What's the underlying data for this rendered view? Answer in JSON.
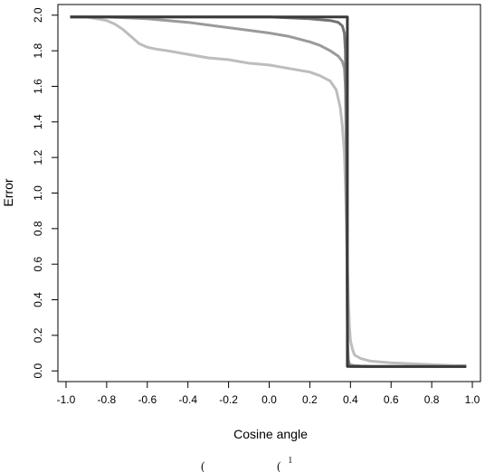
{
  "chart_data": {
    "type": "line",
    "title": "",
    "xlabel": "Cosine angle",
    "ylabel": "Error",
    "xlim": [
      -1.04,
      1.04
    ],
    "ylim": [
      -0.06,
      2.06
    ],
    "xticks": [
      -1.0,
      -0.8,
      -0.6,
      -0.4,
      -0.2,
      0.0,
      0.2,
      0.4,
      0.6,
      0.8,
      1.0
    ],
    "xtick_labels": [
      "-1.0",
      "-0.8",
      "-0.6",
      "-0.4",
      "-0.2",
      "0.0",
      "0.2",
      "0.4",
      "0.6",
      "0.8",
      "1.0"
    ],
    "yticks": [
      0.0,
      0.2,
      0.4,
      0.6,
      0.8,
      1.0,
      1.2,
      1.4,
      1.6,
      1.8,
      2.0
    ],
    "ytick_labels": [
      "0.0",
      "0.2",
      "0.4",
      "0.6",
      "0.8",
      "1.0",
      "1.2",
      "1.4",
      "1.6",
      "1.8",
      "2.0"
    ],
    "grid": false,
    "legend": "none",
    "series": [
      {
        "color": "#bdbdbd",
        "x": [
          -0.98,
          -0.9,
          -0.85,
          -0.8,
          -0.76,
          -0.72,
          -0.68,
          -0.64,
          -0.6,
          -0.56,
          -0.5,
          -0.4,
          -0.3,
          -0.2,
          -0.1,
          0.0,
          0.1,
          0.2,
          0.25,
          0.3,
          0.33,
          0.35,
          0.36,
          0.37,
          0.375,
          0.38,
          0.385,
          0.39,
          0.395,
          0.4,
          0.41,
          0.42,
          0.45,
          0.5,
          0.6,
          0.7,
          0.8,
          0.9,
          0.97
        ],
        "y": [
          1.99,
          1.99,
          1.98,
          1.97,
          1.95,
          1.92,
          1.88,
          1.84,
          1.82,
          1.81,
          1.8,
          1.78,
          1.76,
          1.75,
          1.73,
          1.72,
          1.7,
          1.68,
          1.66,
          1.63,
          1.58,
          1.48,
          1.38,
          1.22,
          1.05,
          0.85,
          0.6,
          0.38,
          0.25,
          0.17,
          0.12,
          0.09,
          0.07,
          0.055,
          0.045,
          0.04,
          0.035,
          0.03,
          0.03
        ]
      },
      {
        "color": "#9a9a9a",
        "x": [
          -0.98,
          -0.8,
          -0.6,
          -0.4,
          -0.2,
          0.0,
          0.1,
          0.2,
          0.25,
          0.3,
          0.34,
          0.36,
          0.37,
          0.375,
          0.38,
          0.383,
          0.386,
          0.39,
          0.395,
          0.4,
          0.42,
          0.45,
          0.5,
          0.6,
          0.8,
          0.97
        ],
        "y": [
          1.99,
          1.99,
          1.98,
          1.96,
          1.93,
          1.9,
          1.88,
          1.85,
          1.83,
          1.8,
          1.77,
          1.74,
          1.7,
          1.6,
          1.2,
          0.6,
          0.15,
          0.06,
          0.04,
          0.035,
          0.03,
          0.028,
          0.026,
          0.025,
          0.024,
          0.024
        ]
      },
      {
        "color": "#737373",
        "x": [
          -0.98,
          -0.5,
          0.0,
          0.2,
          0.3,
          0.34,
          0.36,
          0.37,
          0.375,
          0.38,
          0.383,
          0.386,
          0.39,
          0.4,
          0.5,
          0.8,
          0.97
        ],
        "y": [
          1.99,
          1.99,
          1.99,
          1.98,
          1.97,
          1.96,
          1.94,
          1.9,
          1.8,
          1.4,
          0.6,
          0.08,
          0.03,
          0.025,
          0.024,
          0.024,
          0.024
        ]
      },
      {
        "color": "#3a3a3a",
        "x": [
          -0.98,
          0.385,
          0.385,
          0.97
        ],
        "y": [
          1.99,
          1.99,
          0.025,
          0.025
        ]
      }
    ]
  },
  "caption_fragments": [
    "(",
    "(",
    "1"
  ]
}
